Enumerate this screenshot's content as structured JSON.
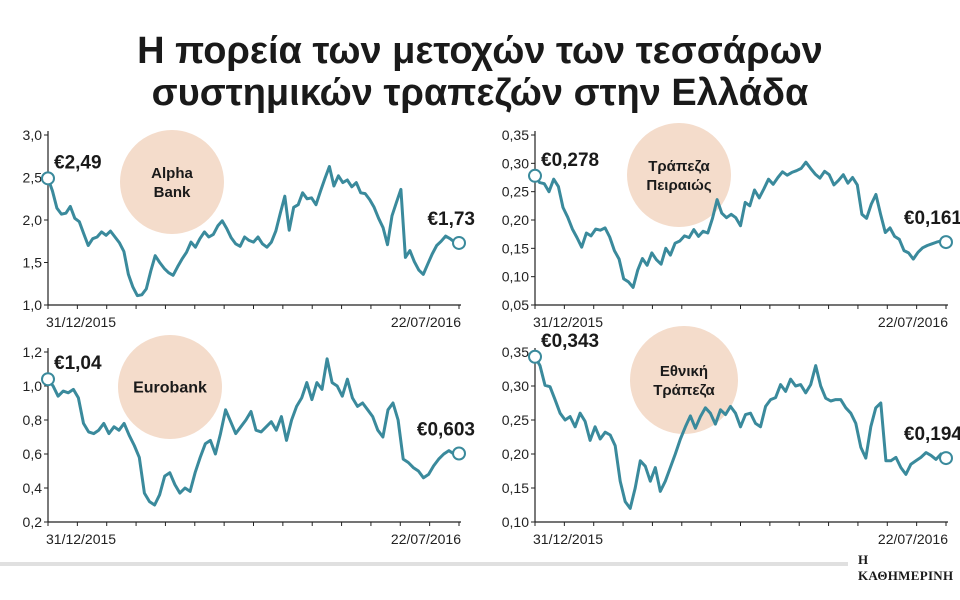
{
  "title": {
    "line1": "Η πορεία των μετοχών των τεσσάρων",
    "line2": "συστημικών τραπεζών στην Ελλάδα"
  },
  "brand": "Η ΚΑΘΗΜΕΡΙΝΗ",
  "colors": {
    "line": "#3a8a9c",
    "badge": "#f4dccb",
    "axis": "#222222"
  },
  "chart_data": [
    {
      "type": "line",
      "name": "Alpha Bank",
      "badge": [
        "Alpha",
        "Bank"
      ],
      "ylim": [
        1.0,
        3.0
      ],
      "yticks": [
        "1,0",
        "1,5",
        "2,0",
        "2,5",
        "3,0"
      ],
      "x_start": "31/12/2015",
      "x_end": "22/07/2016",
      "start_label": "€2,49",
      "end_label": "€1,73",
      "values": [
        2.49,
        2.34,
        2.14,
        2.07,
        2.08,
        2.16,
        2.02,
        1.98,
        1.84,
        1.7,
        1.78,
        1.8,
        1.86,
        1.82,
        1.87,
        1.8,
        1.73,
        1.63,
        1.36,
        1.21,
        1.11,
        1.12,
        1.19,
        1.4,
        1.58,
        1.5,
        1.43,
        1.38,
        1.35,
        1.45,
        1.54,
        1.62,
        1.74,
        1.68,
        1.78,
        1.86,
        1.8,
        1.83,
        1.93,
        1.99,
        1.9,
        1.79,
        1.72,
        1.69,
        1.8,
        1.76,
        1.74,
        1.8,
        1.72,
        1.68,
        1.74,
        1.87,
        2.08,
        2.28,
        1.88,
        2.15,
        2.18,
        2.32,
        2.25,
        2.26,
        2.18,
        2.34,
        2.49,
        2.63,
        2.4,
        2.52,
        2.44,
        2.47,
        2.39,
        2.44,
        2.32,
        2.31,
        2.24,
        2.15,
        2.02,
        1.91,
        1.71,
        2.05,
        2.21,
        2.36,
        1.56,
        1.64,
        1.51,
        1.41,
        1.36,
        1.48,
        1.6,
        1.7,
        1.75,
        1.81,
        1.78,
        1.74,
        1.73
      ]
    },
    {
      "type": "line",
      "name": "Τράπεζα Πειραιώς",
      "badge": [
        "Τράπεζα",
        "Πειραιώς"
      ],
      "ylim": [
        0.05,
        0.35
      ],
      "yticks": [
        "0,05",
        "0,10",
        "0,15",
        "0,20",
        "0,25",
        "0,30",
        "0,35"
      ],
      "x_start": "31/12/2015",
      "x_end": "22/07/2016",
      "start_label": "€0,278",
      "end_label": "€0,161",
      "values": [
        0.278,
        0.266,
        0.264,
        0.25,
        0.272,
        0.259,
        0.222,
        0.205,
        0.184,
        0.169,
        0.152,
        0.177,
        0.172,
        0.184,
        0.182,
        0.186,
        0.17,
        0.146,
        0.131,
        0.096,
        0.091,
        0.081,
        0.112,
        0.132,
        0.12,
        0.142,
        0.13,
        0.122,
        0.15,
        0.138,
        0.159,
        0.163,
        0.172,
        0.169,
        0.183,
        0.171,
        0.18,
        0.177,
        0.203,
        0.236,
        0.212,
        0.204,
        0.21,
        0.204,
        0.19,
        0.231,
        0.225,
        0.253,
        0.239,
        0.255,
        0.272,
        0.263,
        0.275,
        0.285,
        0.279,
        0.284,
        0.287,
        0.291,
        0.302,
        0.291,
        0.281,
        0.274,
        0.286,
        0.28,
        0.262,
        0.27,
        0.28,
        0.265,
        0.275,
        0.262,
        0.21,
        0.203,
        0.228,
        0.245,
        0.21,
        0.178,
        0.186,
        0.171,
        0.166,
        0.146,
        0.142,
        0.131,
        0.143,
        0.151,
        0.155,
        0.158,
        0.161,
        0.163,
        0.161
      ]
    },
    {
      "type": "line",
      "name": "Eurobank",
      "badge": [
        "Eurobank"
      ],
      "ylim": [
        0.2,
        1.2
      ],
      "yticks": [
        "0,2",
        "0,4",
        "0,6",
        "0,8",
        "1,0",
        "1,2"
      ],
      "x_start": "31/12/2015",
      "x_end": "22/07/2016",
      "start_label": "€1,04",
      "end_label": "€0,603",
      "values": [
        1.04,
        1.0,
        0.94,
        0.97,
        0.96,
        0.98,
        0.93,
        0.78,
        0.73,
        0.72,
        0.74,
        0.78,
        0.72,
        0.76,
        0.74,
        0.78,
        0.71,
        0.65,
        0.58,
        0.37,
        0.32,
        0.3,
        0.36,
        0.47,
        0.49,
        0.42,
        0.37,
        0.4,
        0.38,
        0.49,
        0.58,
        0.66,
        0.68,
        0.6,
        0.72,
        0.86,
        0.79,
        0.72,
        0.76,
        0.8,
        0.85,
        0.74,
        0.73,
        0.76,
        0.79,
        0.74,
        0.82,
        0.68,
        0.8,
        0.88,
        0.93,
        1.02,
        0.92,
        1.02,
        0.98,
        1.16,
        1.02,
        1.0,
        0.94,
        1.04,
        0.93,
        0.88,
        0.9,
        0.86,
        0.82,
        0.74,
        0.7,
        0.86,
        0.9,
        0.8,
        0.57,
        0.55,
        0.52,
        0.5,
        0.46,
        0.48,
        0.53,
        0.57,
        0.6,
        0.62,
        0.6,
        0.603
      ]
    },
    {
      "type": "line",
      "name": "Εθνική Τράπεζα",
      "badge": [
        "Εθνική",
        "Τράπεζα"
      ],
      "ylim": [
        0.1,
        0.35
      ],
      "yticks": [
        "0,10",
        "0,15",
        "0,20",
        "0,25",
        "0,30",
        "0,35"
      ],
      "x_start": "31/12/2015",
      "x_end": "22/07/2016",
      "start_label": "€0,343",
      "end_label": "€0,194",
      "values": [
        0.343,
        0.33,
        0.301,
        0.299,
        0.28,
        0.26,
        0.25,
        0.255,
        0.24,
        0.26,
        0.248,
        0.22,
        0.24,
        0.222,
        0.232,
        0.228,
        0.212,
        0.16,
        0.13,
        0.12,
        0.15,
        0.19,
        0.182,
        0.16,
        0.18,
        0.145,
        0.16,
        0.18,
        0.2,
        0.222,
        0.24,
        0.256,
        0.238,
        0.255,
        0.268,
        0.26,
        0.244,
        0.265,
        0.258,
        0.27,
        0.26,
        0.24,
        0.258,
        0.26,
        0.245,
        0.24,
        0.27,
        0.28,
        0.283,
        0.302,
        0.292,
        0.31,
        0.3,
        0.302,
        0.29,
        0.302,
        0.33,
        0.3,
        0.282,
        0.278,
        0.28,
        0.28,
        0.268,
        0.26,
        0.245,
        0.21,
        0.194,
        0.24,
        0.268,
        0.275,
        0.19,
        0.19,
        0.195,
        0.18,
        0.17,
        0.185,
        0.19,
        0.195,
        0.202,
        0.198,
        0.192,
        0.2,
        0.194
      ]
    }
  ]
}
